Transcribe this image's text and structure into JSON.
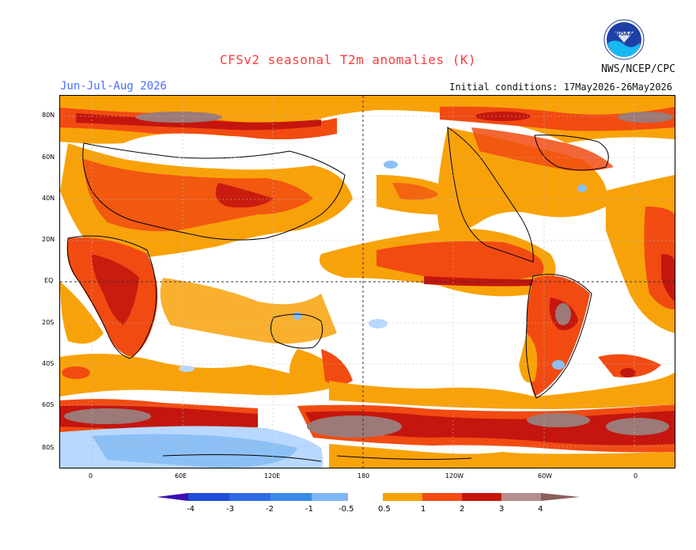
{
  "title": "CFSv2 seasonal T2m anomalies (K)",
  "season": "Jun-Jul-Aug 2026",
  "initial_conditions": "Initial conditions: 17May2026-26May2026",
  "org": "NWS/NCEP/CPC",
  "logo_text": "NOAA",
  "lat_labels": [
    "80N",
    "60N",
    "40N",
    "20N",
    "EQ",
    "20S",
    "40S",
    "60S",
    "80S"
  ],
  "lon_labels": [
    "0",
    "60E",
    "120E",
    "180",
    "120W",
    "60W",
    "0"
  ],
  "colorbar": {
    "labels": [
      "-4",
      "-3",
      "-2",
      "-1",
      "-0.5",
      "0.5",
      "1",
      "2",
      "3",
      "4"
    ],
    "colors": [
      "#3b0fb3",
      "#1f4fd6",
      "#3a8be8",
      "#7fb6f5",
      "#b8d8ff",
      "#ffffff",
      "#f8a20a",
      "#f14b12",
      "#c4160e",
      "#8a1510",
      "#b58f8c"
    ]
  },
  "colors": {
    "title": "#ff3b3b",
    "season": "#4b6cff",
    "warm_light": "#f8a20a",
    "warm_mid": "#f14b12",
    "warm_strong": "#c4160e",
    "warm_max": "#9c7a78",
    "cool_light": "#8cc0f5"
  }
}
